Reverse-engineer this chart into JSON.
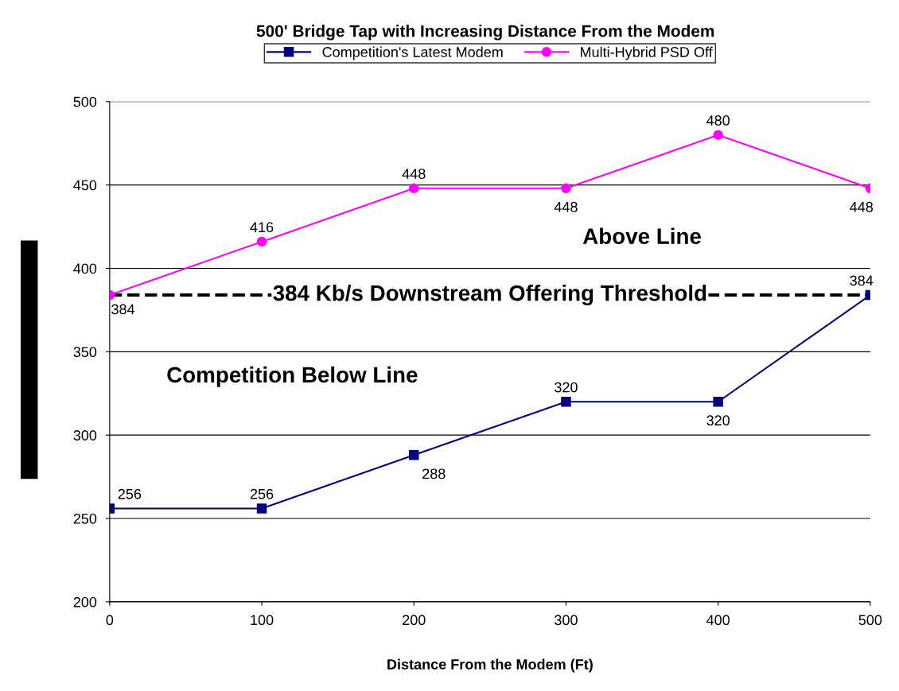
{
  "chart_data": {
    "type": "line",
    "title": "500' Bridge Tap with Increasing Distance From the Modem",
    "xlabel": "Distance From the Modem (Ft)",
    "x": [
      0,
      100,
      200,
      300,
      400,
      500
    ],
    "series": [
      {
        "name": "Competition's Latest Modem",
        "color": "#000080",
        "marker": "square",
        "values": [
          256,
          256,
          288,
          320,
          320,
          384
        ]
      },
      {
        "name": "Multi-Hybrid PSD Off",
        "color": "#ff00ff",
        "marker": "circle",
        "values": [
          384,
          416,
          448,
          448,
          480,
          448
        ]
      }
    ],
    "xlim": [
      0,
      500
    ],
    "xticks": [
      0,
      100,
      200,
      300,
      400,
      500
    ],
    "ylim": [
      200,
      500
    ],
    "yticks": [
      200,
      250,
      300,
      350,
      400,
      450,
      500
    ],
    "ref_lines": [
      {
        "axis": "y",
        "value": 384,
        "label": "384 Kb/s Downstream Offering Threshold",
        "color": "#000000",
        "line_style": "dashed"
      }
    ],
    "annotations": [
      "Above Line",
      "Competition Below Line"
    ],
    "data_labels": true,
    "grid": "y",
    "legend": "top",
    "line_style": "solid"
  }
}
